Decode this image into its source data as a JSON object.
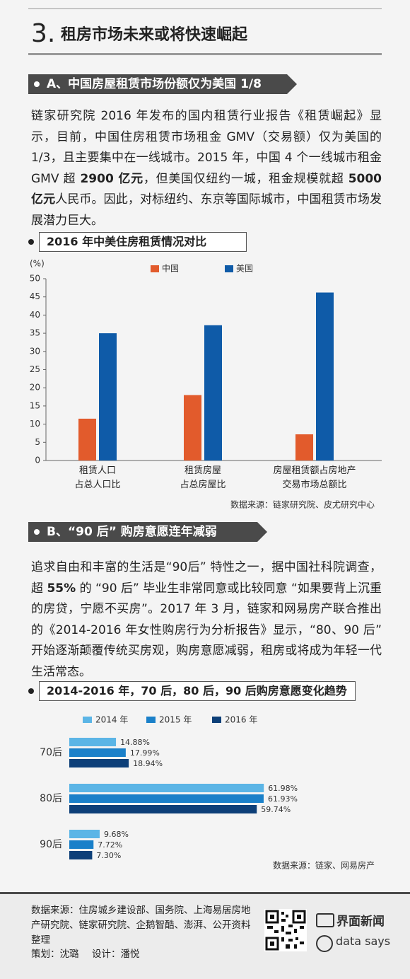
{
  "header": {
    "number": "3.",
    "title": "租房市场未来或将快速崛起"
  },
  "section_a": {
    "heading": "A、中国房屋租赁市场份额仅为美国 1/8",
    "paragraph": [
      {
        "text": "链家研究院 2016 年发布的国内租赁行业报告《租赁崛起》显示，目前，中国住房租赁市场租金 GMV（交易额）仅为美国的 1/3，且主要集中在一线城市。2015 年，中国 4 个一线城市租金 GMV 超 "
      },
      {
        "text": "2900 亿元",
        "bold": true
      },
      {
        "text": "，但美国仅纽约一城，租金规模就超 "
      },
      {
        "text": "5000 亿元",
        "bold": true
      },
      {
        "text": "人民币。因此，对标纽约、东京等国际城市，中国租赁市场发展潜力巨大。"
      }
    ]
  },
  "section_b": {
    "heading": "B、“90 后” 购房意愿连年减弱",
    "paragraph": [
      {
        "text": "追求自由和丰富的生活是“90后” 特性之一，据中国社科院调查，超 "
      },
      {
        "text": "55%",
        "bold": true
      },
      {
        "text": " 的 “90 后” 毕业生非常同意或比较同意 “如果要背上沉重的房贷，宁愿不买房”。2017 年 3 月，链家和网易房产联合推出的《2014-2016 年女性购房行为分析报告》显示，“80、90 后” 开始逐渐颠覆传统买房观，购房意愿减弱，租房或将成为年轻一代生活常态。"
      }
    ]
  },
  "chart_data": [
    {
      "type": "bar",
      "title": "2016 年中美住房租赁情况对比",
      "y_unit": "(%)",
      "categories": [
        "租赁人口\n占总人口比",
        "租赁房屋\n占总房屋比",
        "房屋租赁额占房地产\n交易市场总额比"
      ],
      "series": [
        {
          "name": "中国",
          "color": "#e25b2c",
          "values": [
            11.5,
            18,
            7.2
          ]
        },
        {
          "name": "美国",
          "color": "#0f5ba8",
          "values": [
            35,
            37.2,
            46.2
          ]
        }
      ],
      "ylim": [
        0,
        50
      ],
      "yticks": [
        0,
        5,
        10,
        15,
        20,
        25,
        30,
        35,
        40,
        45,
        50
      ],
      "source": "数据来源：链家研究院、皮尤研究中心"
    },
    {
      "type": "barh",
      "title": "2014-2016 年，70 后，80 后，90 后购房意愿变化趋势",
      "categories": [
        "70后",
        "80后",
        "90后"
      ],
      "series": [
        {
          "name": "2014 年",
          "color": "#5bb5e6",
          "values": [
            14.88,
            61.98,
            9.68
          ],
          "value_labels": [
            "14.88%",
            "61.98%",
            "9.68%"
          ]
        },
        {
          "name": "2015 年",
          "color": "#1a80c9",
          "values": [
            17.99,
            61.93,
            7.72
          ],
          "value_labels": [
            "17.99%",
            "61.93%",
            "7.72%"
          ]
        },
        {
          "name": "2016 年",
          "color": "#0d3f78",
          "values": [
            18.94,
            59.74,
            7.3
          ],
          "value_labels": [
            "18.94%",
            "59.74%",
            "7.30%"
          ]
        }
      ],
      "source": "数据来源：链家、网易房产"
    }
  ],
  "footer": {
    "source": "数据来源：住房城乡建设部、国务院、上海易居房地产研究院、链家研究院、企鹅智酷、澎湃、公开资料整理",
    "planner": "策划：沈璐",
    "designer": "设计：潘悦",
    "brand": "界面新闻",
    "brand2": "data says"
  }
}
